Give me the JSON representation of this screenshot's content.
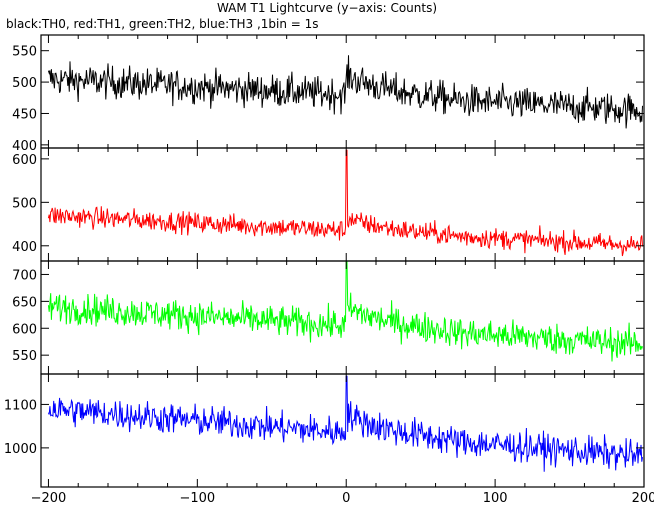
{
  "title": "WAM T1 Lightcurve (y−axis: Counts)",
  "subtitle": "black:TH0, red:TH1, green:TH2, blue:TH3 ,1bin = 1s",
  "chart_data": [
    {
      "type": "line",
      "series": [
        {
          "name": "TH0",
          "color": "#000000",
          "mean_start": 505,
          "mean_end": 455,
          "noise": 22,
          "spike": 0
        }
      ],
      "xlim": [
        -205,
        200
      ],
      "ylim": [
        395,
        575
      ],
      "yticks": [
        400,
        450,
        500,
        550
      ],
      "xticks": [
        -200,
        -100,
        0,
        100,
        200
      ],
      "xlabel": "",
      "ylabel": ""
    },
    {
      "type": "line",
      "series": [
        {
          "name": "TH1",
          "color": "#ff0000",
          "mean_start": 470,
          "mean_end": 400,
          "noise": 20,
          "spike": 620
        }
      ],
      "xlim": [
        -205,
        200
      ],
      "ylim": [
        365,
        625
      ],
      "yticks": [
        400,
        500,
        600
      ],
      "xticks": [
        -200,
        -100,
        0,
        100,
        200
      ],
      "xlabel": "",
      "ylabel": ""
    },
    {
      "type": "line",
      "series": [
        {
          "name": "TH2",
          "color": "#00ff00",
          "mean_start": 640,
          "mean_end": 570,
          "noise": 24,
          "spike": 725
        }
      ],
      "xlim": [
        -205,
        200
      ],
      "ylim": [
        515,
        725
      ],
      "yticks": [
        550,
        600,
        650,
        700
      ],
      "xticks": [
        -200,
        -100,
        0,
        100,
        200
      ],
      "xlabel": "",
      "ylabel": ""
    },
    {
      "type": "line",
      "series": [
        {
          "name": "TH3",
          "color": "#0000ff",
          "mean_start": 1090,
          "mean_end": 980,
          "noise": 30,
          "spike": 1165
        }
      ],
      "xlim": [
        -205,
        200
      ],
      "ylim": [
        910,
        1170
      ],
      "yticks": [
        1000,
        1100
      ],
      "xticks": [
        -200,
        -100,
        0,
        100,
        200
      ],
      "xlabel": "",
      "ylabel": ""
    }
  ]
}
